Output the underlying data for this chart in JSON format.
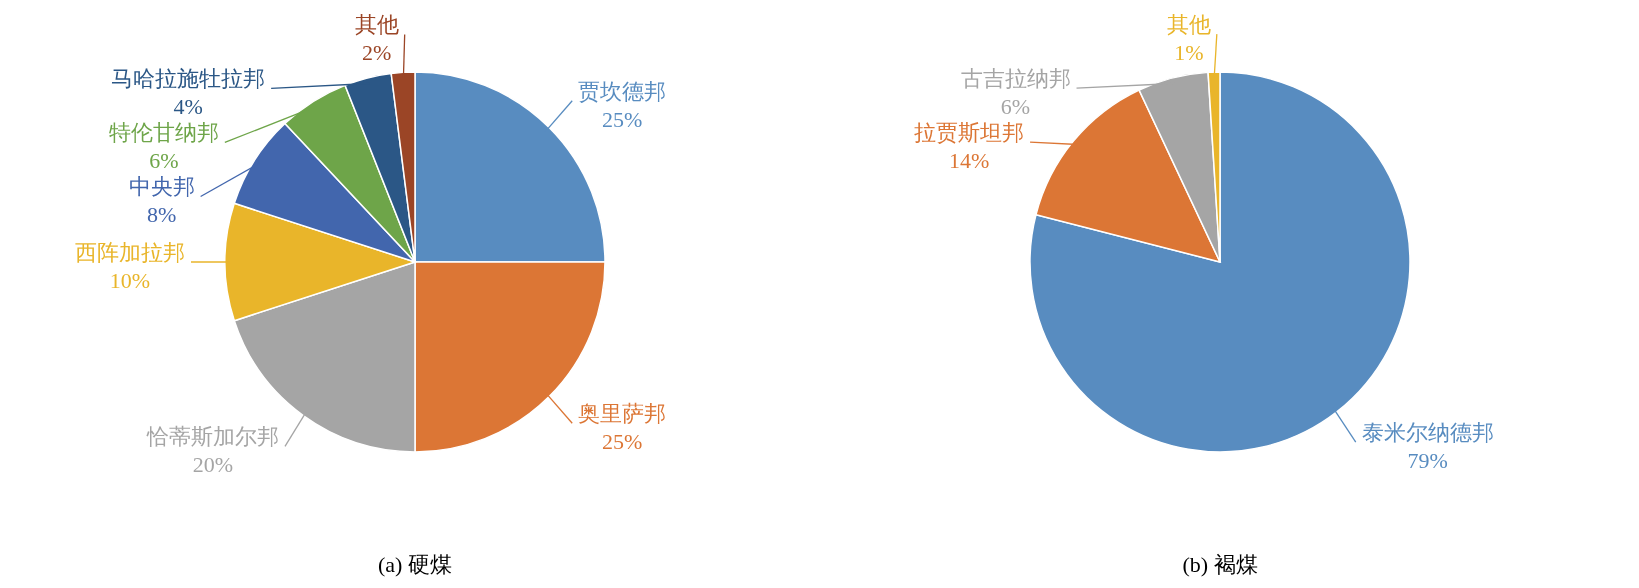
{
  "chart_data": [
    {
      "type": "pie",
      "title": "(a) 硬煤",
      "categories": [
        "贾坎德邦",
        "奥里萨邦",
        "恰蒂斯加尔邦",
        "西阵加拉邦",
        "中央邦",
        "特伦甘纳邦",
        "马哈拉施牡拉邦",
        "其他"
      ],
      "values": [
        25,
        25,
        20,
        10,
        8,
        6,
        4,
        2
      ],
      "value_labels": [
        "25%",
        "25%",
        "20%",
        "10%",
        "8%",
        "6%",
        "4%",
        "2%"
      ],
      "colors": [
        "#588cc0",
        "#dc7635",
        "#a5a5a5",
        "#e9b52a",
        "#4266ad",
        "#6ea549",
        "#2b5786",
        "#9b4526"
      ]
    },
    {
      "type": "pie",
      "title": "(b) 褐煤",
      "categories": [
        "泰米尔纳德邦",
        "拉贾斯坦邦",
        "古吉拉纳邦",
        "其他"
      ],
      "values": [
        79,
        14,
        6,
        1
      ],
      "value_labels": [
        "79%",
        "14%",
        "6%",
        "1%"
      ],
      "colors": [
        "#588cc0",
        "#dc7635",
        "#a5a5a5",
        "#e9b52a"
      ]
    }
  ]
}
